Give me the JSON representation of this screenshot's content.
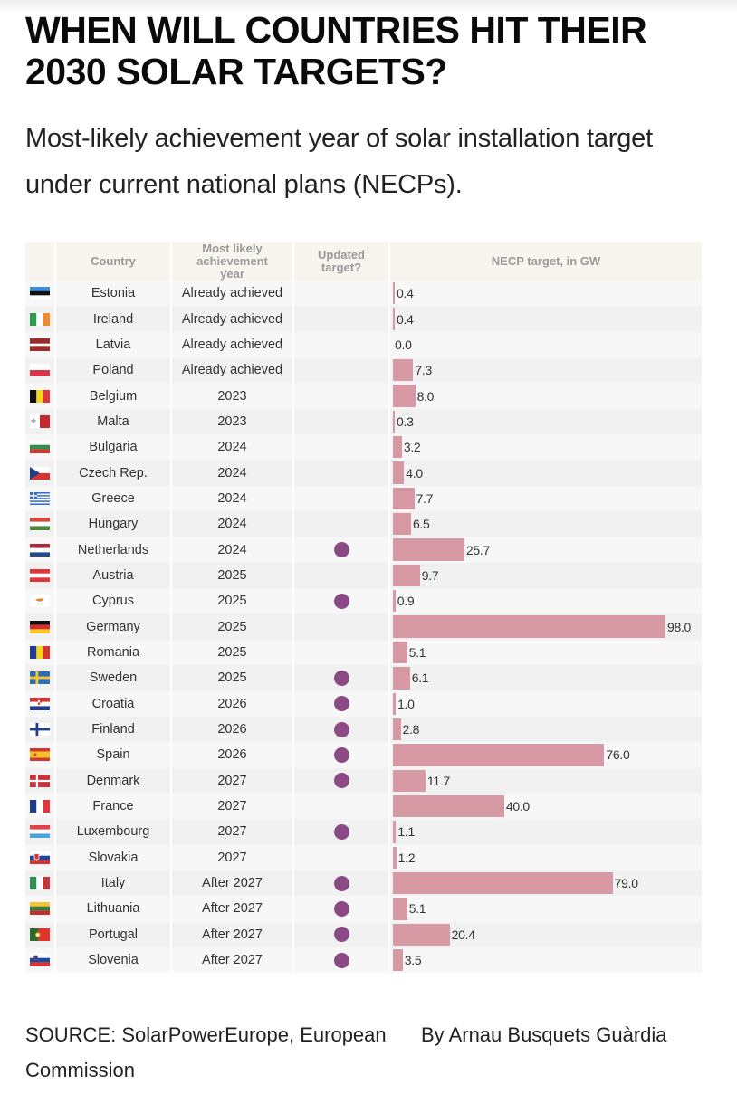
{
  "title": "WHEN WILL COUNTRIES HIT THEIR 2030 SOLAR TARGETS?",
  "subtitle": "Most-likely achievement year of solar installation target under current national plans (NECPs).",
  "colors": {
    "bar": "#d799a3",
    "updated_dot": "#8c4a85",
    "header_bg": "#f8f4ee"
  },
  "table": {
    "headers": {
      "flag": "",
      "country": "Country",
      "year": "Most likely achievement year",
      "updated": "Updated target?",
      "target": "NECP target, in GW"
    }
  },
  "chart_data": {
    "type": "table",
    "title": "WHEN WILL COUNTRIES HIT THEIR 2030 SOLAR TARGETS?",
    "subtitle": "Most-likely achievement year of solar installation target under current national plans (NECPs).",
    "xlabel": "NECP target, in GW",
    "xlim": [
      0,
      98
    ],
    "columns": [
      "Country",
      "Most likely achievement year",
      "Updated target?",
      "NECP target, in GW"
    ],
    "rows": [
      {
        "country": "Estonia",
        "flag": "ee",
        "year": "Already achieved",
        "updated": false,
        "target_gw": 0.4,
        "label": "0.4"
      },
      {
        "country": "Ireland",
        "flag": "ie",
        "year": "Already achieved",
        "updated": false,
        "target_gw": 0.4,
        "label": "0.4"
      },
      {
        "country": "Latvia",
        "flag": "lv",
        "year": "Already achieved",
        "updated": false,
        "target_gw": 0.0,
        "label": "0.0"
      },
      {
        "country": "Poland",
        "flag": "pl",
        "year": "Already achieved",
        "updated": false,
        "target_gw": 7.3,
        "label": "7.3"
      },
      {
        "country": "Belgium",
        "flag": "be",
        "year": "2023",
        "updated": false,
        "target_gw": 8.0,
        "label": "8.0"
      },
      {
        "country": "Malta",
        "flag": "mt",
        "year": "2023",
        "updated": false,
        "target_gw": 0.3,
        "label": "0.3"
      },
      {
        "country": "Bulgaria",
        "flag": "bg",
        "year": "2024",
        "updated": false,
        "target_gw": 3.2,
        "label": "3.2"
      },
      {
        "country": "Czech Rep.",
        "flag": "cz",
        "year": "2024",
        "updated": false,
        "target_gw": 4.0,
        "label": "4.0"
      },
      {
        "country": "Greece",
        "flag": "gr",
        "year": "2024",
        "updated": false,
        "target_gw": 7.7,
        "label": "7.7"
      },
      {
        "country": "Hungary",
        "flag": "hu",
        "year": "2024",
        "updated": false,
        "target_gw": 6.5,
        "label": "6.5"
      },
      {
        "country": "Netherlands",
        "flag": "nl",
        "year": "2024",
        "updated": true,
        "target_gw": 25.7,
        "label": "25.7"
      },
      {
        "country": "Austria",
        "flag": "at",
        "year": "2025",
        "updated": false,
        "target_gw": 9.7,
        "label": "9.7"
      },
      {
        "country": "Cyprus",
        "flag": "cy",
        "year": "2025",
        "updated": true,
        "target_gw": 0.9,
        "label": "0.9"
      },
      {
        "country": "Germany",
        "flag": "de",
        "year": "2025",
        "updated": false,
        "target_gw": 98.0,
        "label": "98.0"
      },
      {
        "country": "Romania",
        "flag": "ro",
        "year": "2025",
        "updated": false,
        "target_gw": 5.1,
        "label": "5.1"
      },
      {
        "country": "Sweden",
        "flag": "se",
        "year": "2025",
        "updated": true,
        "target_gw": 6.1,
        "label": "6.1"
      },
      {
        "country": "Croatia",
        "flag": "hr",
        "year": "2026",
        "updated": true,
        "target_gw": 1.0,
        "label": "1.0"
      },
      {
        "country": "Finland",
        "flag": "fi",
        "year": "2026",
        "updated": true,
        "target_gw": 2.8,
        "label": "2.8"
      },
      {
        "country": "Spain",
        "flag": "es",
        "year": "2026",
        "updated": true,
        "target_gw": 76.0,
        "label": "76.0"
      },
      {
        "country": "Denmark",
        "flag": "dk",
        "year": "2027",
        "updated": true,
        "target_gw": 11.7,
        "label": "11.7"
      },
      {
        "country": "France",
        "flag": "fr",
        "year": "2027",
        "updated": false,
        "target_gw": 40.0,
        "label": "40.0"
      },
      {
        "country": "Luxembourg",
        "flag": "lu",
        "year": "2027",
        "updated": true,
        "target_gw": 1.1,
        "label": "1.1"
      },
      {
        "country": "Slovakia",
        "flag": "sk",
        "year": "2027",
        "updated": false,
        "target_gw": 1.2,
        "label": "1.2"
      },
      {
        "country": "Italy",
        "flag": "it",
        "year": "After 2027",
        "updated": true,
        "target_gw": 79.0,
        "label": "79.0"
      },
      {
        "country": "Lithuania",
        "flag": "lt",
        "year": "After 2027",
        "updated": true,
        "target_gw": 5.1,
        "label": "5.1"
      },
      {
        "country": "Portugal",
        "flag": "pt",
        "year": "After 2027",
        "updated": true,
        "target_gw": 20.4,
        "label": "20.4"
      },
      {
        "country": "Slovenia",
        "flag": "si",
        "year": "After 2027",
        "updated": true,
        "target_gw": 3.5,
        "label": "3.5"
      }
    ]
  },
  "footer": {
    "source": "SOURCE: SolarPowerEurope, European Commission",
    "byline": "By Arnau Busquets Guàrdia"
  }
}
